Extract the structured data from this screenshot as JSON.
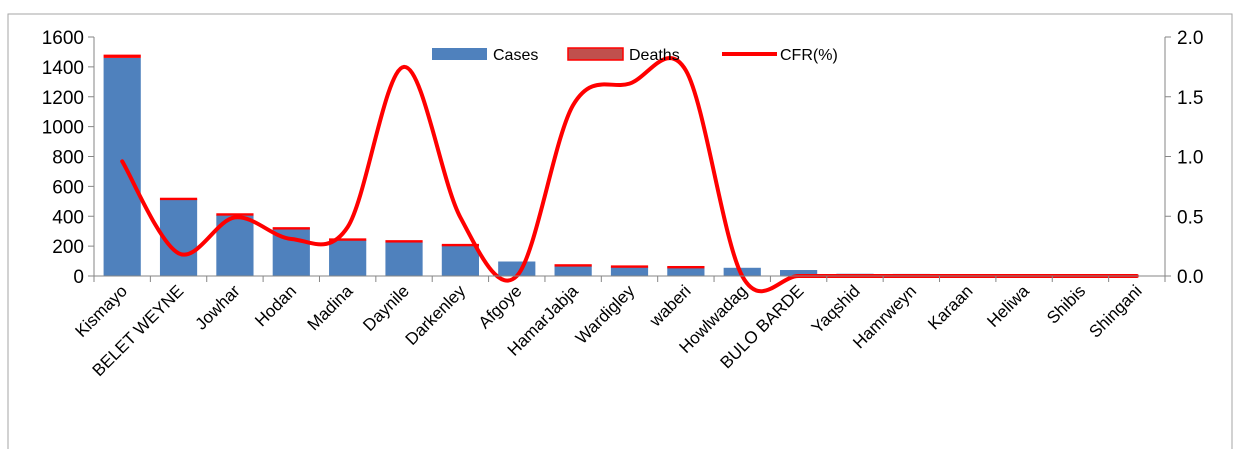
{
  "chart_data": {
    "type": "bar",
    "categories": [
      "Kismayo",
      "BELET WEYNE",
      "Jowhar",
      "Hodan",
      "Madina",
      "Daynile",
      "Darkenley",
      "Afgoye",
      "HamarJabja",
      "Wardigley",
      "waberi",
      "Howlwadag",
      "BULO BARDE",
      "Yaqshid",
      "Hamrweyn",
      "Karaan",
      "Heliwa",
      "Shibis",
      "Shingani"
    ],
    "series": [
      {
        "name": "Cases",
        "type": "bar",
        "axis": "left",
        "color": "#4f81bd",
        "values": [
          1460,
          515,
          410,
          318,
          243,
          228,
          206,
          97,
          70,
          62,
          58,
          55,
          40,
          15,
          14,
          5,
          3,
          3,
          2
        ]
      },
      {
        "name": "Deaths",
        "type": "bar",
        "stacked": true,
        "axis": "left",
        "color": "#c0504d",
        "values": [
          14,
          1,
          2,
          1,
          1,
          4,
          1,
          0,
          1,
          1,
          1,
          0,
          0,
          0,
          0,
          0,
          0,
          0,
          0
        ]
      },
      {
        "name": "CFR(%)",
        "type": "line",
        "smooth": true,
        "axis": "right",
        "color": "#ff0000",
        "values": [
          0.96,
          0.19,
          0.49,
          0.31,
          0.41,
          1.75,
          0.49,
          0.0,
          1.43,
          1.61,
          1.72,
          0.0,
          0.0,
          0.0,
          0.0,
          0.0,
          0.0,
          0.0,
          0.0
        ]
      }
    ],
    "y_left": {
      "min": 0,
      "max": 1600,
      "ticks": [
        "0",
        "200",
        "400",
        "600",
        "800",
        "1000",
        "1200",
        "1400",
        "1600"
      ]
    },
    "y_right": {
      "min": 0,
      "max": 2.0,
      "ticks": [
        "0.0",
        "0.5",
        "1.0",
        "1.5",
        "2.0"
      ]
    },
    "legend": {
      "position": "top-center",
      "items": [
        "Cases",
        "Deaths",
        "CFR(%)"
      ]
    },
    "grid": false
  }
}
